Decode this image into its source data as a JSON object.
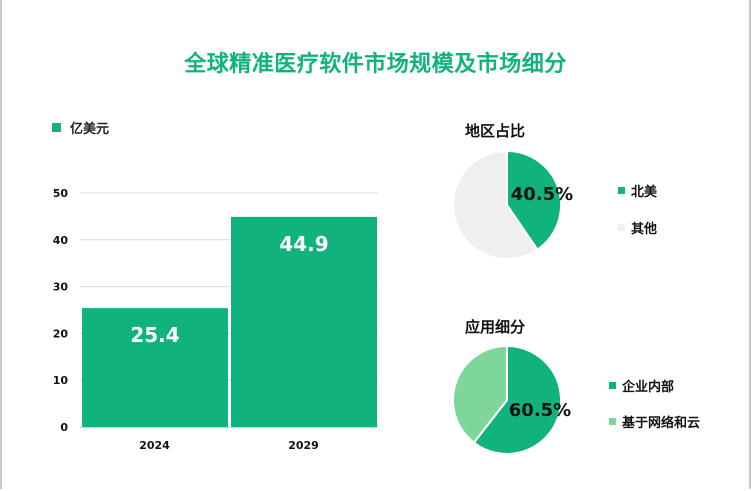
{
  "title": "全球精准医疗软件市场规模及市场细分",
  "colors": {
    "primary": "#10b37e",
    "light": "#7fd69b",
    "other": "#efefef",
    "title": "#10b37e"
  },
  "chart_data": [
    {
      "type": "bar",
      "title": "",
      "legend": "亿美元",
      "categories": [
        "2024",
        "2029"
      ],
      "values": [
        25.4,
        44.9
      ],
      "value_labels": [
        "25.4",
        "44.9"
      ],
      "ylim": [
        0,
        50
      ],
      "yticks": [
        "0",
        "10",
        "20",
        "30",
        "40",
        "50"
      ],
      "grid": true
    },
    {
      "type": "pie",
      "title": "地区占比",
      "labels": [
        "北美",
        "其他"
      ],
      "values": [
        40.5,
        59.5
      ],
      "data_label": "40.5%",
      "legend_placement": "right"
    },
    {
      "type": "pie",
      "title": "应用细分",
      "labels": [
        "企业内部",
        "基于网络和云"
      ],
      "values": [
        60.5,
        39.5
      ],
      "data_label": "60.5%",
      "legend_placement": "right"
    }
  ]
}
